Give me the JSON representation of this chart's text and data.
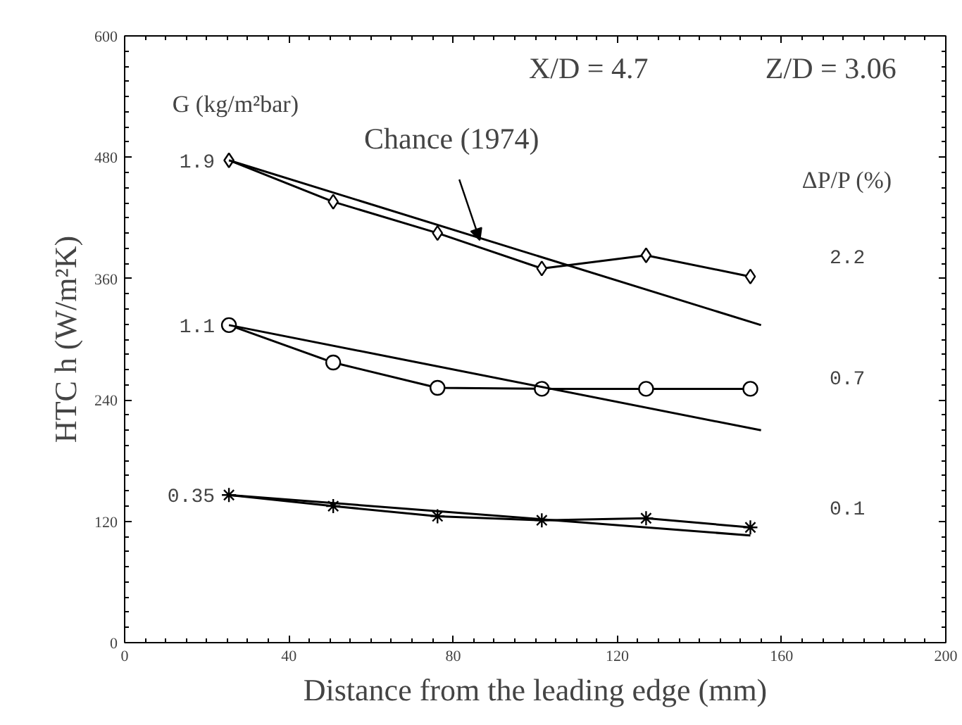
{
  "chart_data": {
    "type": "line",
    "xlabel": "Distance from the leading edge (mm)",
    "ylabel": "HTC h (W/m²K)",
    "xlim": [
      0,
      200
    ],
    "xticks": [
      0,
      40,
      80,
      120,
      160,
      200
    ],
    "ylim": [
      0,
      600
    ],
    "yticks": [
      0,
      120,
      240,
      360,
      480,
      600
    ],
    "grid": false,
    "series": [
      {
        "name": "1.9",
        "color": "#000000",
        "marker": "diamond",
        "x": [
          25.4,
          50.8,
          76.2,
          101.6,
          127,
          152.4
        ],
        "values": [
          477,
          436,
          405,
          370,
          383,
          362
        ]
      },
      {
        "color": "#000000",
        "marker": "none",
        "x": [
          25.4,
          155
        ],
        "values": [
          477,
          314
        ]
      },
      {
        "name": "1.1",
        "color": "#000000",
        "marker": "circle",
        "x": [
          25.4,
          50.8,
          76.2,
          101.6,
          127,
          152.4
        ],
        "values": [
          314,
          277,
          252,
          251,
          251,
          251
        ]
      },
      {
        "color": "#000000",
        "marker": "none",
        "x": [
          25.4,
          155
        ],
        "values": [
          314,
          210
        ]
      },
      {
        "name": "0.35",
        "color": "#000000",
        "marker": "cross",
        "x": [
          25.4,
          50.8,
          76.2,
          101.6,
          127,
          152.4
        ],
        "values": [
          146,
          135,
          125,
          121,
          123,
          114
        ]
      },
      {
        "color": "#000000",
        "marker": "none",
        "x": [
          25.4,
          152.4
        ],
        "values": [
          146,
          106
        ]
      }
    ],
    "annotations": [
      "X/D = 4.7",
      "Z/D = 3.06",
      "G (kg/m²bar)",
      "ΔP/P (%)",
      "2.2",
      "0.7",
      "0.1",
      {
        "text": "Chance (1974)",
        "x": 86.5,
        "y": 398
      }
    ]
  }
}
